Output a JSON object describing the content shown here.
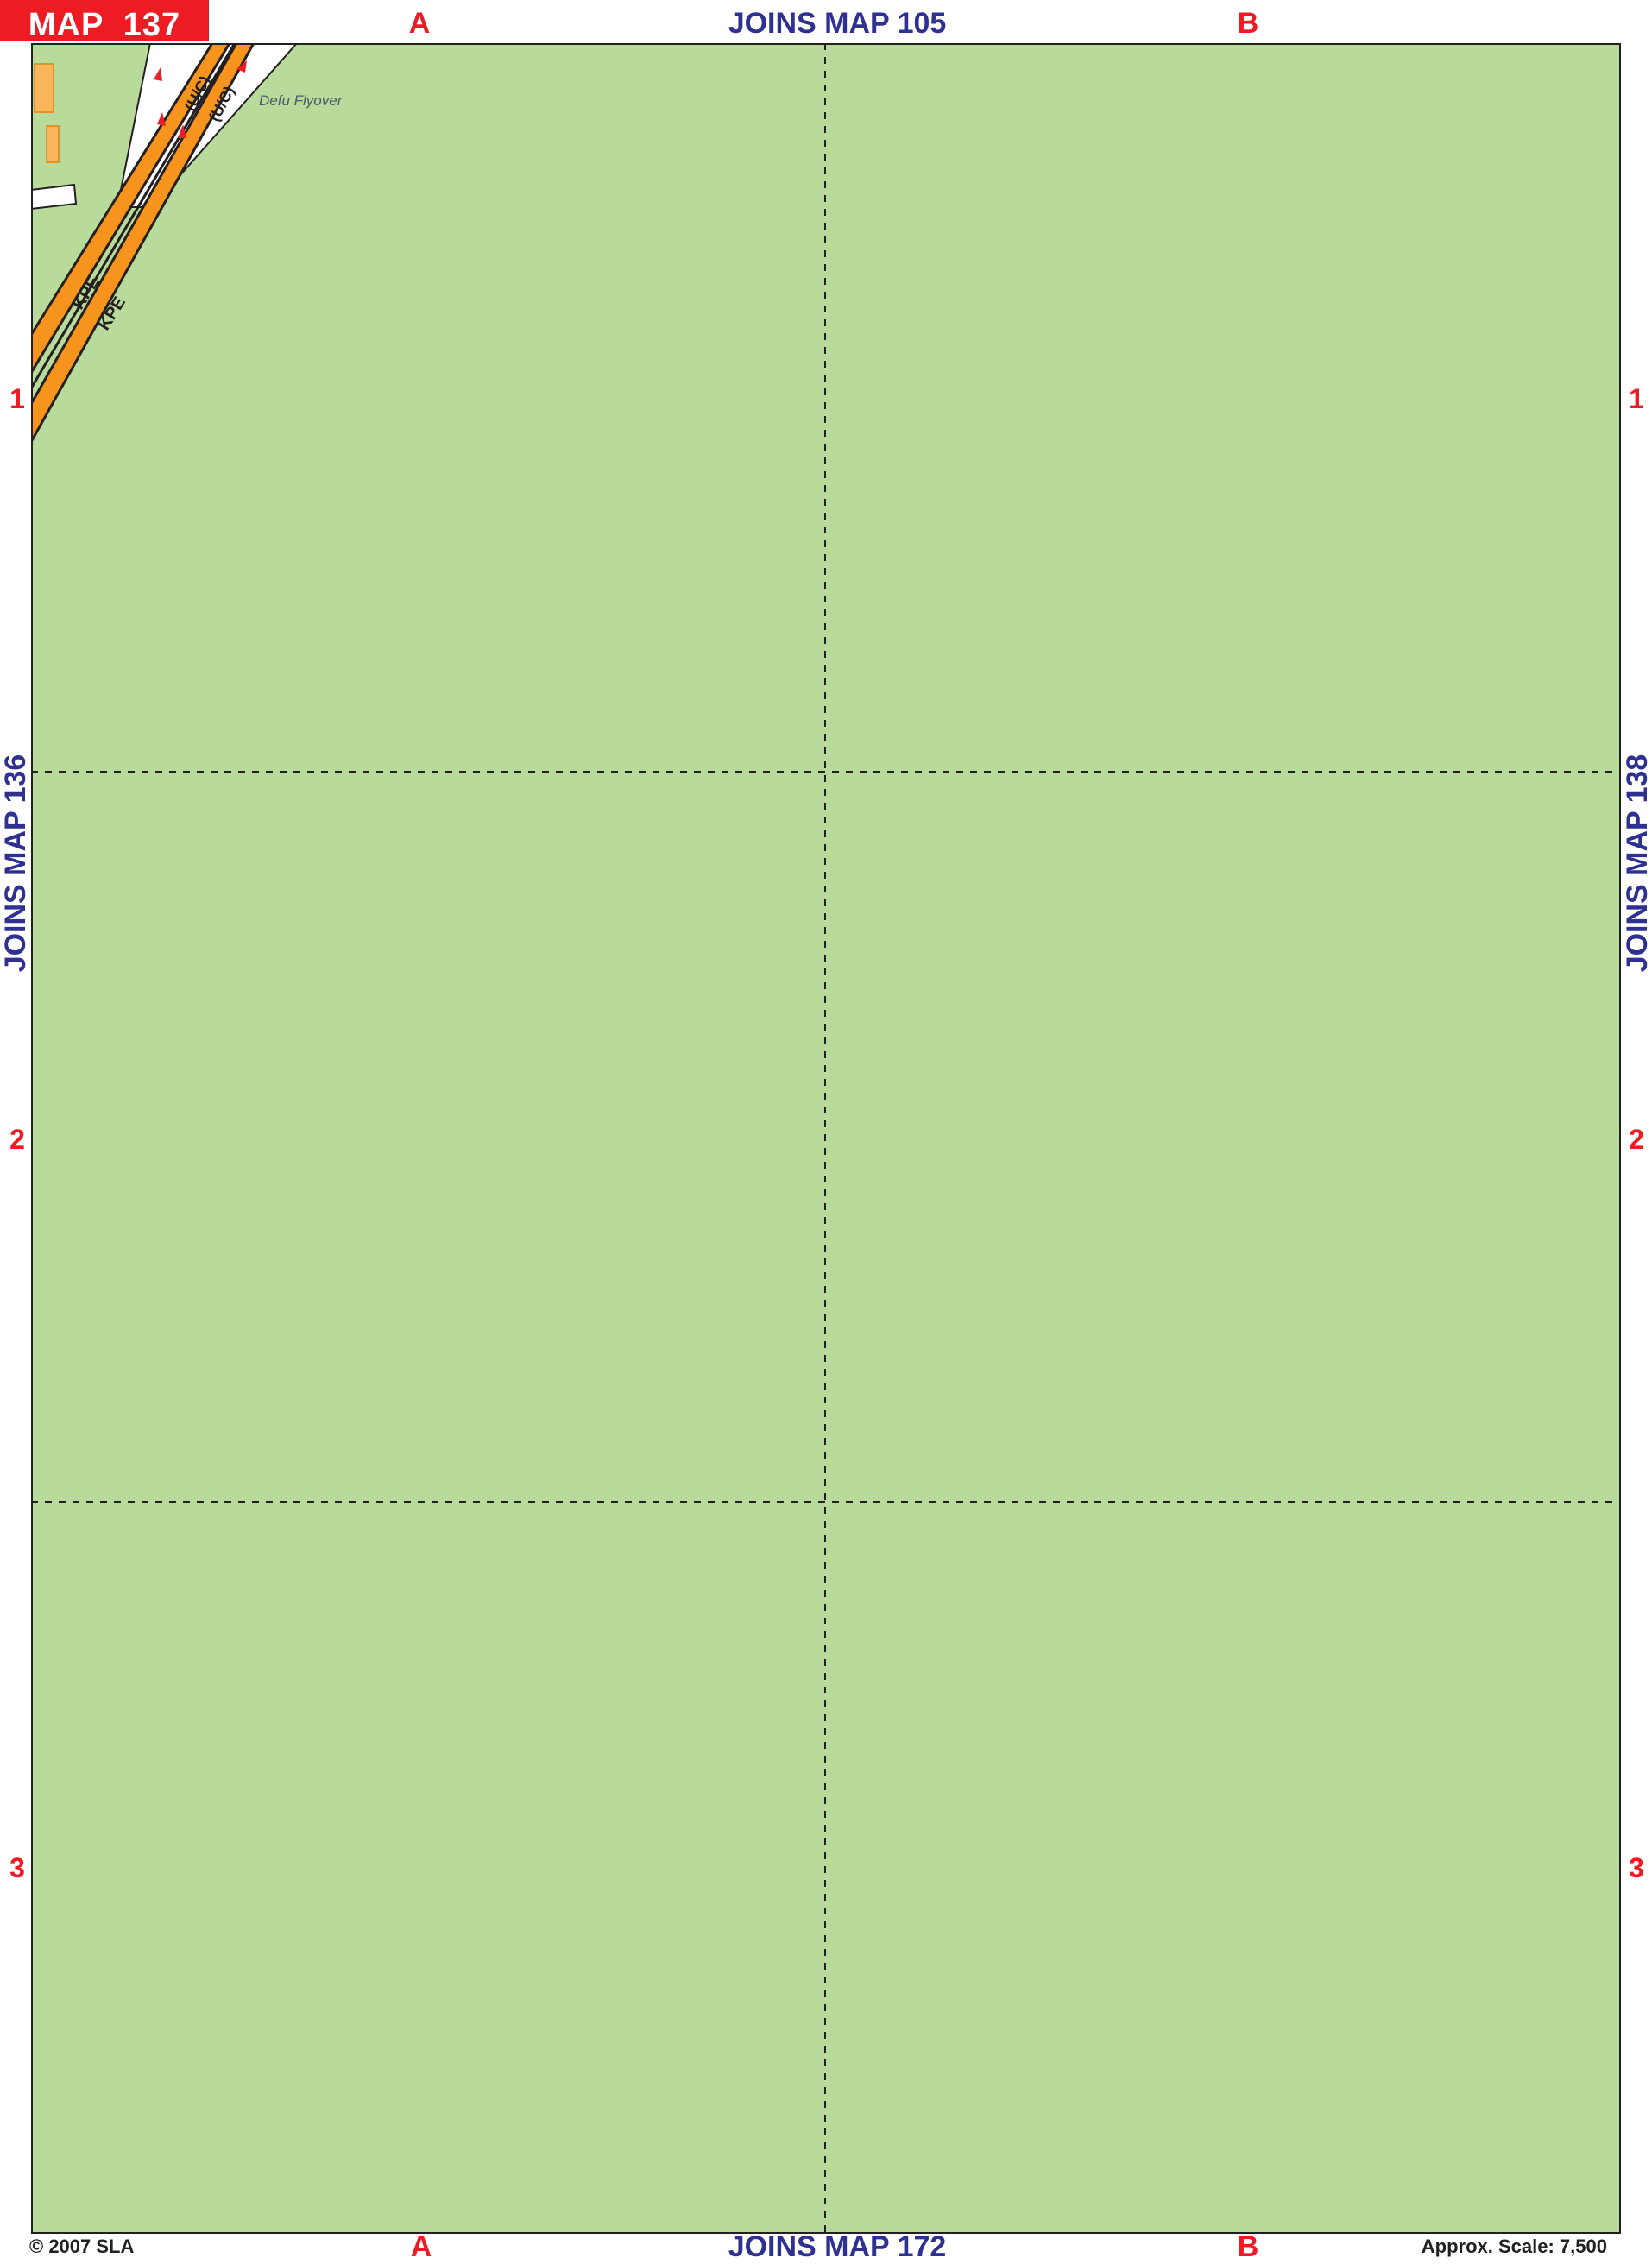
{
  "map_number_label": "MAP  137",
  "grid": {
    "columns": [
      "A",
      "B"
    ],
    "rows": [
      "1",
      "2",
      "3"
    ]
  },
  "joins": {
    "top": "JOINS MAP 105",
    "bottom": "JOINS MAP 172",
    "left": "JOINS MAP 136",
    "right": "JOINS MAP 138"
  },
  "features": {
    "flyover_label": "Defu Flyover",
    "expressway_labels": [
      "KPE",
      "KPE"
    ],
    "underconstruction_labels": [
      "(U/C)",
      "(U/C)"
    ]
  },
  "footer": {
    "copyright": "© 2007 SLA",
    "scale": "Approx. Scale: 7,500"
  },
  "colors": {
    "map_background": "#b8da9a",
    "expressway": "#f7941d",
    "badge": "#ed1c24",
    "grid_letters": "#ed1c24",
    "joins_text": "#2e3192",
    "building": "#f9b55a"
  }
}
